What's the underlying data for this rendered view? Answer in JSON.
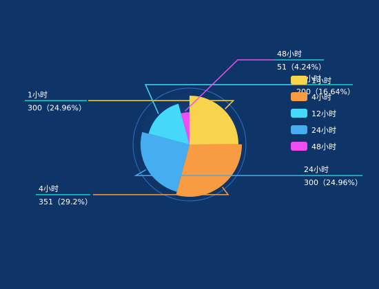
{
  "chart_data": {
    "type": "pie",
    "variant": "rose",
    "categories": [
      "1小时",
      "4小时",
      "24小时",
      "12小时",
      "48小时"
    ],
    "values": [
      300,
      351,
      300,
      200,
      51
    ],
    "percents": [
      "24.96%",
      "29.2%",
      "24.96%",
      "16.64%",
      "4.24%"
    ],
    "value_labels": [
      "300（24.96%）",
      "351（29.2%）",
      "300（24.96%）",
      "200（16.64%）",
      "51（4.24%）"
    ],
    "colors": [
      "#f7d44c",
      "#f79c43",
      "#45adf0",
      "#46d8f8",
      "#ef4df1"
    ],
    "legend": {
      "position": "top-right",
      "items": [
        "1小时",
        "4小时",
        "12小时",
        "24小时",
        "48小时"
      ],
      "colors": [
        "#f7d44c",
        "#f79c43",
        "#46d8f8",
        "#45adf0",
        "#ef4df1"
      ]
    },
    "title": "",
    "grid": false
  }
}
